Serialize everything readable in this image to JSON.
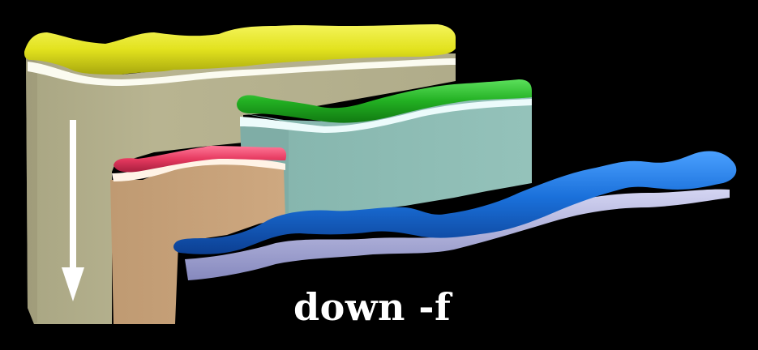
{
  "caption": "down -f",
  "colors": {
    "background": "#000000",
    "frame_body": "#b4b08c",
    "frame_top": "#e6e62e",
    "left_block_body": "#c8a27a",
    "left_block_top": "#e84066",
    "right_block_body": "#8ebcb4",
    "right_block_top": "#2eb82e",
    "wave": "#1a6fd4",
    "arrow": "#ffffff"
  }
}
